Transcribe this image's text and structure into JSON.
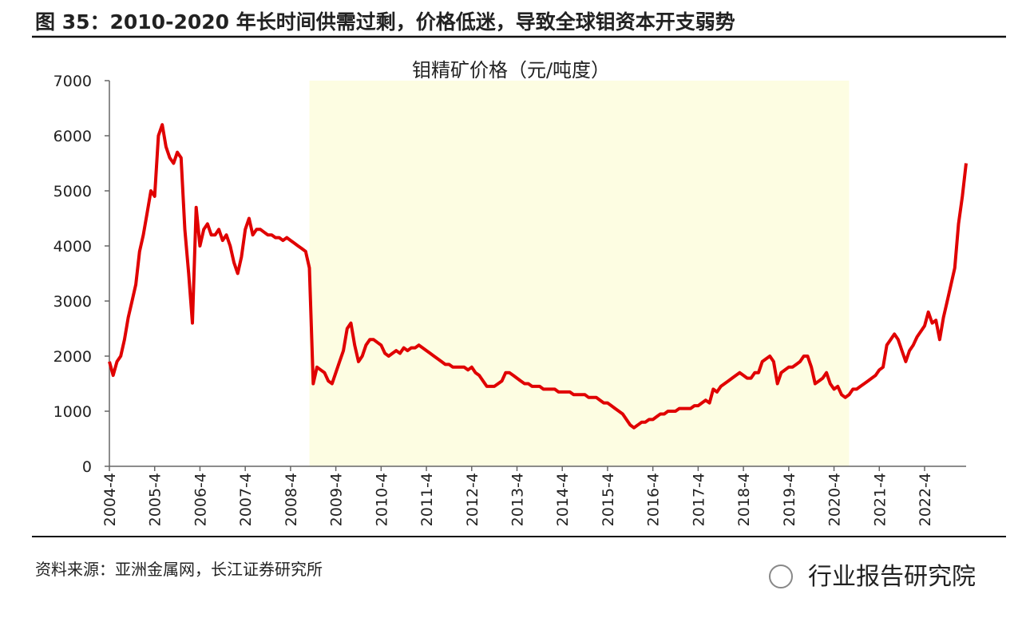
{
  "figure_title": "图 35：2010-2020 年长时间供需过剩，价格低迷，导致全球钼资本开支弱势",
  "source": "资料来源：亚洲金属网，长江证券研究所",
  "watermark": "行业报告研究院",
  "chart_data": {
    "type": "line",
    "title": "钼精矿价格（元/吨度）",
    "color": "#e00000",
    "highlight": {
      "from": "2008-9",
      "to": "2020-8",
      "color": "#fdfde2"
    },
    "xlim": [
      "2004-4",
      "2023-3"
    ],
    "xticks": [
      "2004-4",
      "2005-4",
      "2006-4",
      "2007-4",
      "2008-4",
      "2009-4",
      "2010-4",
      "2011-4",
      "2012-4",
      "2013-4",
      "2014-4",
      "2015-4",
      "2016-4",
      "2017-4",
      "2018-4",
      "2019-4",
      "2020-4",
      "2021-4",
      "2022-4"
    ],
    "ylim": [
      0,
      7000
    ],
    "yticks": [
      0,
      1000,
      2000,
      3000,
      4000,
      5000,
      6000,
      7000
    ],
    "x": [
      "2004-4",
      "2004-5",
      "2004-6",
      "2004-7",
      "2004-8",
      "2004-9",
      "2004-10",
      "2004-11",
      "2004-12",
      "2005-1",
      "2005-2",
      "2005-3",
      "2005-4",
      "2005-5",
      "2005-6",
      "2005-7",
      "2005-8",
      "2005-9",
      "2005-10",
      "2005-11",
      "2005-12",
      "2006-1",
      "2006-2",
      "2006-3",
      "2006-4",
      "2006-5",
      "2006-6",
      "2006-7",
      "2006-8",
      "2006-9",
      "2006-10",
      "2006-11",
      "2006-12",
      "2007-1",
      "2007-2",
      "2007-3",
      "2007-4",
      "2007-5",
      "2007-6",
      "2007-7",
      "2007-8",
      "2007-9",
      "2007-10",
      "2007-11",
      "2007-12",
      "2008-1",
      "2008-2",
      "2008-3",
      "2008-4",
      "2008-5",
      "2008-6",
      "2008-7",
      "2008-8",
      "2008-9",
      "2008-10",
      "2008-11",
      "2008-12",
      "2009-1",
      "2009-2",
      "2009-3",
      "2009-4",
      "2009-5",
      "2009-6",
      "2009-7",
      "2009-8",
      "2009-9",
      "2009-10",
      "2009-11",
      "2009-12",
      "2010-1",
      "2010-2",
      "2010-3",
      "2010-4",
      "2010-5",
      "2010-6",
      "2010-7",
      "2010-8",
      "2010-9",
      "2010-10",
      "2010-11",
      "2010-12",
      "2011-1",
      "2011-2",
      "2011-3",
      "2011-4",
      "2011-5",
      "2011-6",
      "2011-7",
      "2011-8",
      "2011-9",
      "2011-10",
      "2011-11",
      "2011-12",
      "2012-1",
      "2012-2",
      "2012-3",
      "2012-4",
      "2012-5",
      "2012-6",
      "2012-7",
      "2012-8",
      "2012-9",
      "2012-10",
      "2012-11",
      "2012-12",
      "2013-1",
      "2013-2",
      "2013-3",
      "2013-4",
      "2013-5",
      "2013-6",
      "2013-7",
      "2013-8",
      "2013-9",
      "2013-10",
      "2013-11",
      "2013-12",
      "2014-1",
      "2014-2",
      "2014-3",
      "2014-4",
      "2014-5",
      "2014-6",
      "2014-7",
      "2014-8",
      "2014-9",
      "2014-10",
      "2014-11",
      "2014-12",
      "2015-1",
      "2015-2",
      "2015-3",
      "2015-4",
      "2015-5",
      "2015-6",
      "2015-7",
      "2015-8",
      "2015-9",
      "2015-10",
      "2015-11",
      "2015-12",
      "2016-1",
      "2016-2",
      "2016-3",
      "2016-4",
      "2016-5",
      "2016-6",
      "2016-7",
      "2016-8",
      "2016-9",
      "2016-10",
      "2016-11",
      "2016-12",
      "2017-1",
      "2017-2",
      "2017-3",
      "2017-4",
      "2017-5",
      "2017-6",
      "2017-7",
      "2017-8",
      "2017-9",
      "2017-10",
      "2017-11",
      "2017-12",
      "2018-1",
      "2018-2",
      "2018-3",
      "2018-4",
      "2018-5",
      "2018-6",
      "2018-7",
      "2018-8",
      "2018-9",
      "2018-10",
      "2018-11",
      "2018-12",
      "2019-1",
      "2019-2",
      "2019-3",
      "2019-4",
      "2019-5",
      "2019-6",
      "2019-7",
      "2019-8",
      "2019-9",
      "2019-10",
      "2019-11",
      "2019-12",
      "2020-1",
      "2020-2",
      "2020-3",
      "2020-4",
      "2020-5",
      "2020-6",
      "2020-7",
      "2020-8",
      "2020-9",
      "2020-10",
      "2020-11",
      "2020-12",
      "2021-1",
      "2021-2",
      "2021-3",
      "2021-4",
      "2021-5",
      "2021-6",
      "2021-7",
      "2021-8",
      "2021-9",
      "2021-10",
      "2021-11",
      "2021-12",
      "2022-1",
      "2022-2",
      "2022-3",
      "2022-4",
      "2022-5",
      "2022-6",
      "2022-7",
      "2022-8",
      "2022-9",
      "2022-10",
      "2022-11",
      "2022-12",
      "2023-1",
      "2023-2",
      "2023-3"
    ],
    "values": [
      1900,
      1650,
      1900,
      2000,
      2300,
      2700,
      3000,
      3300,
      3900,
      4200,
      4600,
      5000,
      4900,
      6000,
      6200,
      5800,
      5600,
      5500,
      5700,
      5600,
      4300,
      3500,
      2600,
      4700,
      4000,
      4300,
      4400,
      4200,
      4200,
      4300,
      4100,
      4200,
      4000,
      3700,
      3500,
      3800,
      4300,
      4500,
      4200,
      4300,
      4300,
      4250,
      4200,
      4200,
      4150,
      4150,
      4100,
      4150,
      4100,
      4050,
      4000,
      3950,
      3900,
      3600,
      1500,
      1800,
      1750,
      1700,
      1550,
      1500,
      1700,
      1900,
      2100,
      2500,
      2600,
      2200,
      1900,
      2000,
      2200,
      2300,
      2300,
      2250,
      2200,
      2050,
      2000,
      2050,
      2100,
      2050,
      2150,
      2100,
      2150,
      2150,
      2200,
      2150,
      2100,
      2050,
      2000,
      1950,
      1900,
      1850,
      1850,
      1800,
      1800,
      1800,
      1800,
      1750,
      1800,
      1700,
      1650,
      1550,
      1450,
      1450,
      1450,
      1500,
      1550,
      1700,
      1700,
      1650,
      1600,
      1550,
      1500,
      1500,
      1450,
      1450,
      1450,
      1400,
      1400,
      1400,
      1400,
      1350,
      1350,
      1350,
      1350,
      1300,
      1300,
      1300,
      1300,
      1250,
      1250,
      1250,
      1200,
      1150,
      1150,
      1100,
      1050,
      1000,
      950,
      850,
      750,
      700,
      750,
      800,
      800,
      850,
      850,
      900,
      950,
      950,
      1000,
      1000,
      1000,
      1050,
      1050,
      1050,
      1050,
      1100,
      1100,
      1150,
      1200,
      1150,
      1400,
      1350,
      1450,
      1500,
      1550,
      1600,
      1650,
      1700,
      1650,
      1600,
      1600,
      1700,
      1700,
      1900,
      1950,
      2000,
      1900,
      1500,
      1700,
      1750,
      1800,
      1800,
      1850,
      1900,
      2000,
      2000,
      1800,
      1500,
      1550,
      1600,
      1700,
      1500,
      1400,
      1450,
      1300,
      1250,
      1300,
      1400,
      1400,
      1450,
      1500,
      1550,
      1600,
      1650,
      1750,
      1800,
      2200,
      2300,
      2400,
      2300,
      2100,
      1900,
      2100,
      2200,
      2350,
      2450,
      2550,
      2800,
      2600,
      2650,
      2300,
      2700,
      3000,
      3300,
      3600,
      4400,
      4900,
      5500
    ]
  }
}
